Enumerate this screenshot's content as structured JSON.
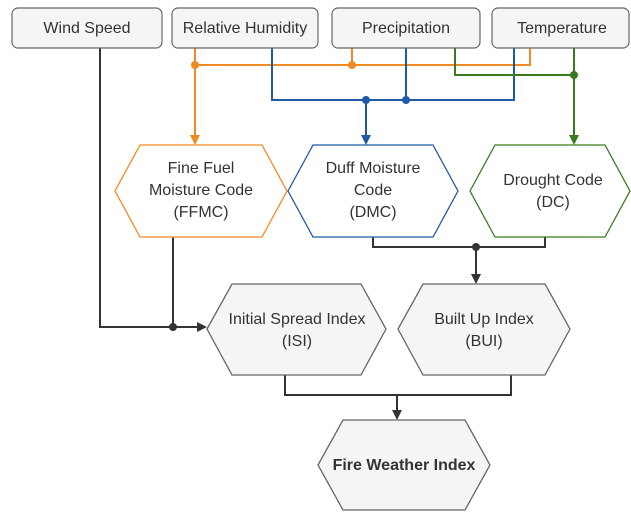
{
  "nodes": [
    {
      "label": [
        "Wind Speed"
      ]
    },
    {
      "label": [
        "Relative Humidity"
      ]
    },
    {
      "label": [
        "Precipitation"
      ]
    },
    {
      "label": [
        "Temperature"
      ]
    },
    {
      "label": [
        "Fine Fuel",
        "Moisture Code",
        "(FFMC)"
      ]
    },
    {
      "label": [
        "Duff Moisture",
        "Code",
        "(DMC)"
      ]
    },
    {
      "label": [
        "Drought Code",
        "(DC)"
      ]
    },
    {
      "label": [
        "Initial Spread Index",
        "(ISI)"
      ]
    },
    {
      "label": [
        "Built Up Index",
        "(BUI)"
      ]
    },
    {
      "label": [
        "Fire Weather Index"
      ]
    }
  ]
}
